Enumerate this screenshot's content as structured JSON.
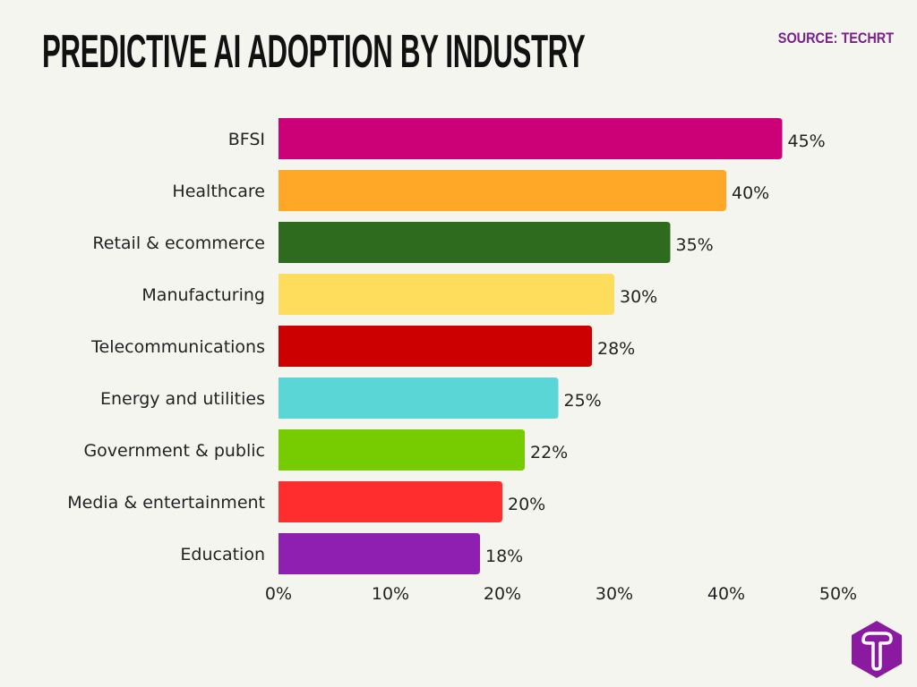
{
  "header": {
    "title": "PREDICTIVE AI ADOPTION BY INDUSTRY",
    "source": "SOURCE: TECHRT"
  },
  "logo": {
    "icon": "techrt-t-hexagon-logo",
    "text": "T",
    "color": "#8a1aa0"
  },
  "chart_data": {
    "type": "bar",
    "orientation": "horizontal",
    "title": "PREDICTIVE AI ADOPTION BY INDUSTRY",
    "categories": [
      "BFSI",
      "Healthcare",
      "Retail & ecommerce",
      "Manufacturing",
      "Telecommunications",
      "Energy and utilities",
      "Government & public",
      "Media & entertainment",
      "Education"
    ],
    "values": [
      45,
      40,
      35,
      30,
      28,
      25,
      22,
      20,
      18
    ],
    "data_labels": [
      "45%",
      "40%",
      "35%",
      "30%",
      "28%",
      "25%",
      "22%",
      "20%",
      "18%"
    ],
    "colors": [
      "#cc0077",
      "#ffa726",
      "#2e6b1e",
      "#ffdd5c",
      "#cc0000",
      "#5bd6d6",
      "#76cc00",
      "#ff2d2d",
      "#8e1fb0"
    ],
    "xlim": [
      0,
      50
    ],
    "xticks": [
      0,
      10,
      20,
      30,
      40,
      50
    ],
    "xtick_labels": [
      "0%",
      "10%",
      "20%",
      "30%",
      "40%",
      "50%"
    ],
    "xlabel": "",
    "ylabel": "",
    "grid": false,
    "legend": "none"
  }
}
